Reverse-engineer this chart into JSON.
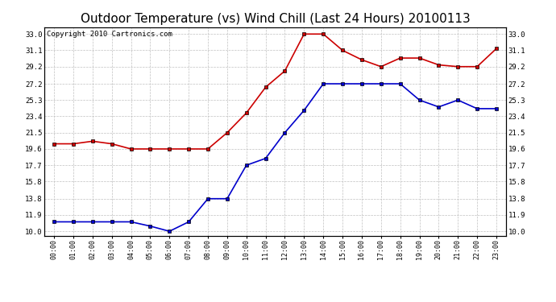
{
  "title": "Outdoor Temperature (vs) Wind Chill (Last 24 Hours) 20100113",
  "copyright": "Copyright 2010 Cartronics.com",
  "hours": [
    "00:00",
    "01:00",
    "02:00",
    "03:00",
    "04:00",
    "05:00",
    "06:00",
    "07:00",
    "08:00",
    "09:00",
    "10:00",
    "11:00",
    "12:00",
    "13:00",
    "14:00",
    "15:00",
    "16:00",
    "17:00",
    "18:00",
    "19:00",
    "20:00",
    "21:00",
    "22:00",
    "23:00"
  ],
  "temp": [
    20.2,
    20.2,
    20.5,
    20.2,
    19.6,
    19.6,
    19.6,
    19.6,
    19.6,
    21.5,
    23.8,
    26.8,
    28.7,
    33.0,
    33.0,
    31.1,
    30.0,
    29.2,
    30.2,
    30.2,
    29.4,
    29.2,
    29.2,
    31.3
  ],
  "wind_chill": [
    11.1,
    11.1,
    11.1,
    11.1,
    11.1,
    10.6,
    10.0,
    11.1,
    13.8,
    13.8,
    17.7,
    18.5,
    21.5,
    24.1,
    27.2,
    27.2,
    27.2,
    27.2,
    27.2,
    25.3,
    24.5,
    25.3,
    24.3,
    24.3
  ],
  "y_ticks": [
    10.0,
    11.9,
    13.8,
    15.8,
    17.7,
    19.6,
    21.5,
    23.4,
    25.3,
    27.2,
    29.2,
    31.1,
    33.0
  ],
  "y_min": 9.5,
  "y_max": 33.8,
  "temp_color": "#cc0000",
  "wind_chill_color": "#0000cc",
  "bg_color": "#ffffff",
  "grid_color": "#c0c0c0",
  "title_fontsize": 11,
  "copyright_fontsize": 6.5
}
